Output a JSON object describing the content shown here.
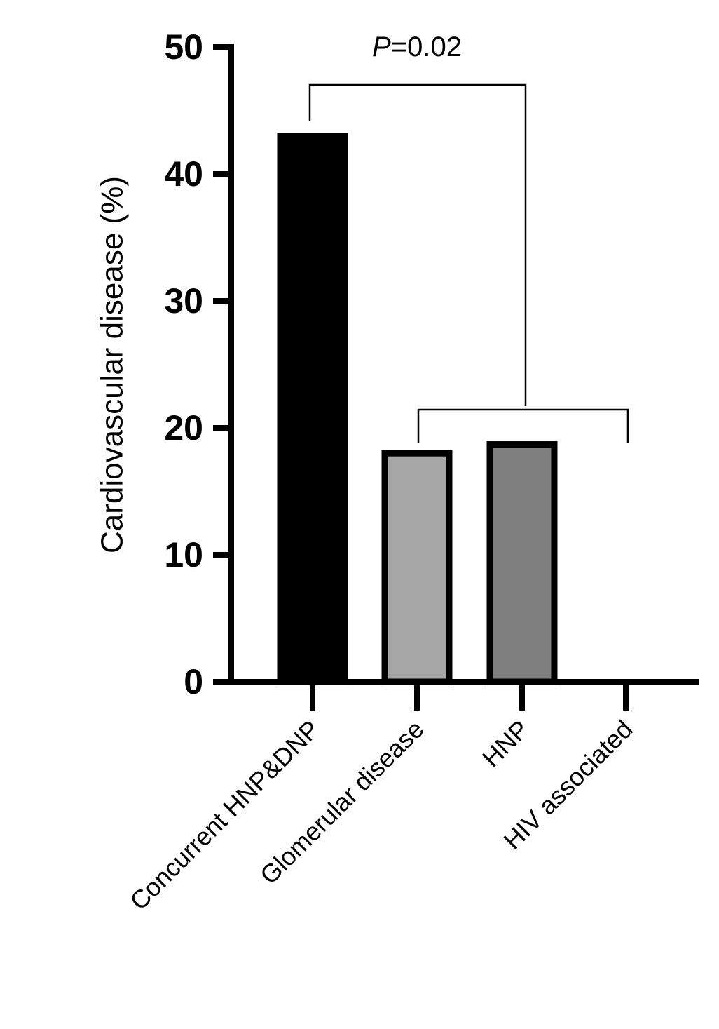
{
  "chart_data": {
    "type": "bar",
    "categories": [
      "Concurrent HNP&DNP",
      "Glomerular disease",
      "HNP",
      "HIV associated"
    ],
    "values": [
      43,
      18,
      18.7,
      0
    ],
    "colors": [
      "#000000",
      "#a6a6a6",
      "#7f7f7f",
      "#ffffff"
    ],
    "ylabel": "Cardiovascular disease (%)",
    "xlabel": "",
    "ylim": [
      0,
      50
    ],
    "yticks": [
      0,
      10,
      20,
      30,
      40,
      50
    ],
    "grid": false,
    "annotation": {
      "p_letter": "P",
      "p_value": "=0.02",
      "compares": "Concurrent HNP&DNP vs. Glomerular disease, HNP, HIV associated"
    }
  }
}
